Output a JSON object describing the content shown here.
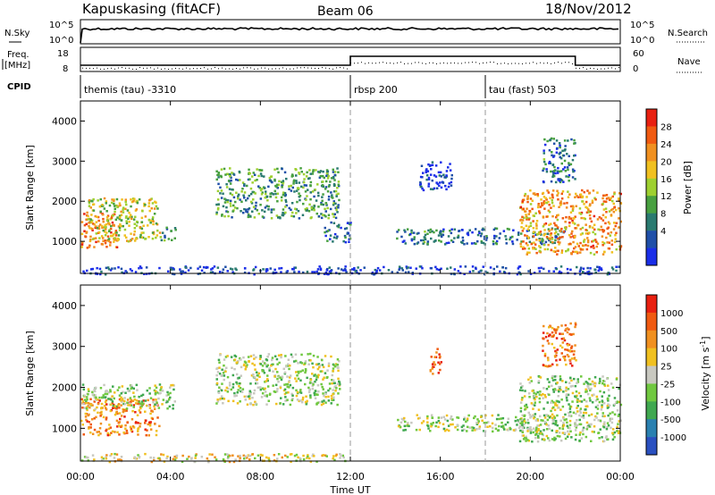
{
  "header": {
    "station": "Kapuskasing (fitACF)",
    "beam": "Beam 06",
    "date": "18/Nov/2012"
  },
  "nsky_panel": {
    "left_label": "N.Sky",
    "right_label": "N.Search",
    "left_ticks": [
      "10^5",
      "10^0"
    ],
    "right_ticks": [
      "10^5",
      "10^0"
    ]
  },
  "freq_panel": {
    "left_label_1": "Freq.",
    "left_label_2": "[MHz]",
    "right_label": "Nave",
    "left_ticks": [
      "18",
      "8"
    ],
    "right_ticks": [
      "60",
      "0"
    ]
  },
  "cpid_panel": {
    "label": "CPID",
    "modes": [
      {
        "name": "themis (tau) -3310",
        "start_hour": 0
      },
      {
        "name": "rbsp 200",
        "start_hour": 12
      },
      {
        "name": "tau (fast) 503",
        "start_hour": 18
      }
    ]
  },
  "chart_data": [
    {
      "type": "heatmap",
      "name": "power",
      "ylabel": "Slant Range [km]",
      "ylim": [
        200,
        4500
      ],
      "yticks": [
        1000,
        2000,
        3000,
        4000
      ],
      "colorbar_label": "Power [dB]",
      "colorbar_ticks": [
        "28",
        "24",
        "20",
        "16",
        "12",
        "8",
        "4"
      ],
      "colors": [
        "#1a2ee8",
        "#1f4fa8",
        "#2a7a70",
        "#48a040",
        "#9ed030",
        "#f0c020",
        "#f09020",
        "#f05a10",
        "#e82010"
      ],
      "scatter_regions": [
        {
          "t0": 0.0,
          "t1": 1.6,
          "r0": 850,
          "r1": 1750,
          "level": 0.75
        },
        {
          "t0": 0.3,
          "t1": 3.5,
          "r0": 1000,
          "r1": 2100,
          "level": 0.55
        },
        {
          "t0": 3.5,
          "t1": 4.2,
          "r0": 1050,
          "r1": 1400,
          "level": 0.3
        },
        {
          "t0": 6.0,
          "t1": 11.5,
          "r0": 1600,
          "r1": 2850,
          "level": 0.35
        },
        {
          "t0": 10.8,
          "t1": 12.0,
          "r0": 1000,
          "r1": 1500,
          "level": 0.2
        },
        {
          "t0": 14.0,
          "t1": 21.5,
          "r0": 950,
          "r1": 1350,
          "level": 0.25
        },
        {
          "t0": 19.5,
          "t1": 24.0,
          "r0": 700,
          "r1": 2300,
          "level": 0.7
        },
        {
          "t0": 15.0,
          "t1": 16.5,
          "r0": 2300,
          "r1": 3000,
          "level": 0.1
        },
        {
          "t0": 20.5,
          "t1": 22.0,
          "r0": 2500,
          "r1": 3600,
          "level": 0.25
        },
        {
          "t0": 0.0,
          "t1": 24.0,
          "r0": 200,
          "r1": 400,
          "level": 0.1
        }
      ]
    },
    {
      "type": "heatmap",
      "name": "velocity",
      "ylabel": "Slant Range [km]",
      "ylim": [
        200,
        4500
      ],
      "yticks": [
        1000,
        2000,
        3000,
        4000
      ],
      "colorbar_label": "Velocity [m s^-1]",
      "colorbar_ticks": [
        "1000",
        "500",
        "100",
        "25",
        "-25",
        "-100",
        "-500",
        "-1000"
      ],
      "colors": [
        "#2a50c0",
        "#2a80b0",
        "#40a850",
        "#70c840",
        "#c8c8c0",
        "#f0c020",
        "#f09020",
        "#f05a10",
        "#e82010"
      ],
      "scatter_regions": [
        {
          "t0": 0.0,
          "t1": 3.5,
          "r0": 850,
          "r1": 1750,
          "level": 0.75
        },
        {
          "t0": 0.0,
          "t1": 4.2,
          "r0": 1500,
          "r1": 2100,
          "level": 0.45
        },
        {
          "t0": 6.0,
          "t1": 11.5,
          "r0": 1600,
          "r1": 2850,
          "level": 0.45
        },
        {
          "t0": 14.0,
          "t1": 21.5,
          "r0": 950,
          "r1": 1350,
          "level": 0.45
        },
        {
          "t0": 19.5,
          "t1": 24.0,
          "r0": 700,
          "r1": 2300,
          "level": 0.45
        },
        {
          "t0": 15.5,
          "t1": 16.0,
          "r0": 2300,
          "r1": 3000,
          "level": 0.8
        },
        {
          "t0": 20.5,
          "t1": 22.0,
          "r0": 2500,
          "r1": 3600,
          "level": 0.8
        },
        {
          "t0": 0.0,
          "t1": 12.0,
          "r0": 200,
          "r1": 400,
          "level": 0.55
        }
      ]
    }
  ],
  "x_axis": {
    "label": "Time UT",
    "ticks": [
      "00:00",
      "04:00",
      "08:00",
      "12:00",
      "16:00",
      "20:00",
      "00:00"
    ],
    "range_hours": [
      0,
      24
    ]
  }
}
